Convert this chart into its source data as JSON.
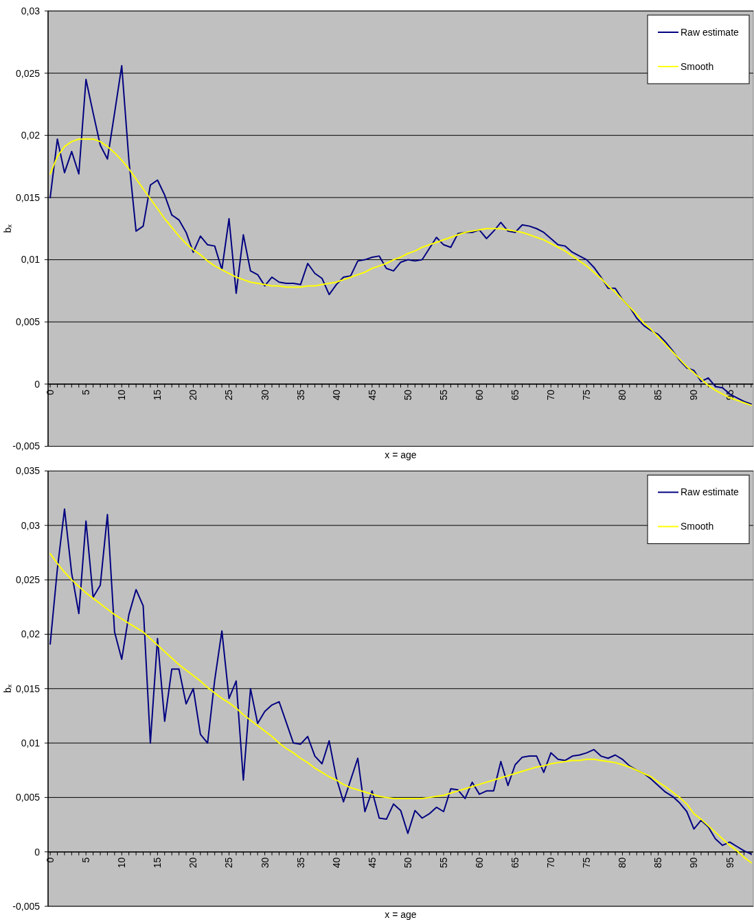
{
  "chart_data": [
    {
      "type": "line",
      "xlabel": "x = age",
      "ylabel": "bₓ",
      "categories": [
        "0",
        null,
        null,
        null,
        null,
        "5",
        null,
        null,
        null,
        null,
        "10",
        null,
        null,
        null,
        null,
        "15",
        null,
        null,
        null,
        null,
        "20",
        null,
        null,
        null,
        null,
        "25",
        null,
        null,
        null,
        null,
        "30",
        null,
        null,
        null,
        null,
        "35",
        null,
        null,
        null,
        null,
        "40",
        null,
        null,
        null,
        null,
        "45",
        null,
        null,
        null,
        null,
        "50",
        null,
        null,
        null,
        null,
        "55",
        null,
        null,
        null,
        null,
        "60",
        null,
        null,
        null,
        null,
        "65",
        null,
        null,
        null,
        null,
        "70",
        null,
        null,
        null,
        null,
        "75",
        null,
        null,
        null,
        null,
        "80",
        null,
        null,
        null,
        null,
        "85",
        null,
        null,
        null,
        null,
        "90",
        null,
        null,
        null,
        null,
        "95",
        null,
        null,
        null
      ],
      "ylim": [
        -0.005,
        0.03
      ],
      "yticks": [
        {
          "value": -0.005,
          "label": "-0,005"
        },
        0,
        {
          "value": 0.005,
          "label": "0,005"
        },
        {
          "value": 0.01,
          "label": "0,01"
        },
        {
          "value": 0.015,
          "label": "0,015"
        },
        {
          "value": 0.02,
          "label": "0,02"
        },
        {
          "value": 0.025,
          "label": "0,025"
        },
        {
          "value": 0.03,
          "label": "0,03"
        }
      ],
      "grid": "y",
      "legend": "top right",
      "series": [
        {
          "name": "Raw estimate",
          "color": "#000080",
          "values": [
            0.015,
            0.0197,
            0.017,
            0.0187,
            0.0169,
            0.0245,
            0.0218,
            0.0192,
            0.0181,
            0.0218,
            0.0256,
            0.018,
            0.0123,
            0.0127,
            0.016,
            0.0164,
            0.0152,
            0.0136,
            0.0132,
            0.0122,
            0.0106,
            0.0119,
            0.0112,
            0.0111,
            0.0092,
            0.0133,
            0.0073,
            0.012,
            0.0091,
            0.0088,
            0.0079,
            0.0086,
            0.0082,
            0.0081,
            0.0081,
            0.008,
            0.0097,
            0.0089,
            0.0085,
            0.0072,
            0.008,
            0.0086,
            0.0087,
            0.0099,
            0.01,
            0.0102,
            0.0103,
            0.0093,
            0.0091,
            0.0098,
            0.01,
            0.0099,
            0.01,
            0.0109,
            0.0118,
            0.0112,
            0.011,
            0.0121,
            0.0122,
            0.0122,
            0.0124,
            0.0117,
            0.0123,
            0.013,
            0.0123,
            0.0122,
            0.0128,
            0.0127,
            0.0125,
            0.0122,
            0.0117,
            0.0112,
            0.0111,
            0.0106,
            0.0103,
            0.01,
            0.0094,
            0.0086,
            0.0077,
            0.0077,
            0.0068,
            0.0062,
            0.0053,
            0.0047,
            0.0043,
            0.004,
            0.0034,
            0.0027,
            0.0019,
            0.0013,
            0.0011,
            0.0002,
            0.0005,
            -0.0002,
            -0.0003,
            -0.0008,
            -0.0011,
            -0.0014,
            -0.0016
          ]
        },
        {
          "name": "Smooth",
          "color": "#ffff00",
          "values": [
            0.0169,
            0.0183,
            0.0191,
            0.0195,
            0.0197,
            0.0197,
            0.0197,
            0.0195,
            0.0191,
            0.0186,
            0.018,
            0.0173,
            0.0165,
            0.0157,
            0.0149,
            0.0141,
            0.0133,
            0.0126,
            0.0119,
            0.0113,
            0.0108,
            0.0104,
            0.0099,
            0.0095,
            0.0092,
            0.0089,
            0.0086,
            0.0084,
            0.0082,
            0.0081,
            0.008,
            0.0079,
            0.0079,
            0.0078,
            0.0078,
            0.0078,
            0.0079,
            0.0079,
            0.008,
            0.0081,
            0.0082,
            0.0084,
            0.0086,
            0.0088,
            0.009,
            0.0093,
            0.0095,
            0.0097,
            0.01,
            0.0102,
            0.0105,
            0.0107,
            0.011,
            0.0112,
            0.0114,
            0.0116,
            0.0118,
            0.012,
            0.0122,
            0.0123,
            0.0124,
            0.0125,
            0.0125,
            0.0125,
            0.0124,
            0.0123,
            0.0122,
            0.012,
            0.0118,
            0.0116,
            0.0113,
            0.011,
            0.0107,
            0.0103,
            0.0099,
            0.0095,
            0.009,
            0.0085,
            0.0079,
            0.0074,
            0.0068,
            0.0062,
            0.0056,
            0.0049,
            0.0044,
            0.0038,
            0.0032,
            0.0026,
            0.002,
            0.0014,
            0.0009,
            0.0004,
            -0.0001,
            -0.0005,
            -0.0008,
            -0.0011,
            -0.0013,
            -0.0015,
            -0.0017
          ]
        }
      ]
    },
    {
      "type": "line",
      "xlabel": "x = age",
      "ylabel": "bₓ",
      "categories": [
        "0",
        null,
        null,
        null,
        null,
        "5",
        null,
        null,
        null,
        null,
        "10",
        null,
        null,
        null,
        null,
        "15",
        null,
        null,
        null,
        null,
        "20",
        null,
        null,
        null,
        null,
        "25",
        null,
        null,
        null,
        null,
        "30",
        null,
        null,
        null,
        null,
        "35",
        null,
        null,
        null,
        null,
        "40",
        null,
        null,
        null,
        null,
        "45",
        null,
        null,
        null,
        null,
        "50",
        null,
        null,
        null,
        null,
        "55",
        null,
        null,
        null,
        null,
        "60",
        null,
        null,
        null,
        null,
        "65",
        null,
        null,
        null,
        null,
        "70",
        null,
        null,
        null,
        null,
        "75",
        null,
        null,
        null,
        null,
        "80",
        null,
        null,
        null,
        null,
        "85",
        null,
        null,
        null,
        null,
        "90",
        null,
        null,
        null,
        null,
        "95",
        null,
        null,
        null
      ],
      "ylim": [
        -0.005,
        0.035
      ],
      "yticks": [
        {
          "value": -0.005,
          "label": "-0,005"
        },
        0,
        {
          "value": 0.005,
          "label": "0,005"
        },
        {
          "value": 0.01,
          "label": "0,01"
        },
        {
          "value": 0.015,
          "label": "0,015"
        },
        {
          "value": 0.02,
          "label": "0,02"
        },
        {
          "value": 0.025,
          "label": "0,025"
        },
        {
          "value": 0.03,
          "label": "0,03"
        },
        {
          "value": 0.035,
          "label": "0,035"
        }
      ],
      "grid": "y",
      "legend": "top right",
      "series": [
        {
          "name": "Raw estimate",
          "color": "#000080",
          "values": [
            0.0191,
            0.026,
            0.0315,
            0.0256,
            0.0219,
            0.0304,
            0.0234,
            0.0245,
            0.031,
            0.0202,
            0.0177,
            0.0218,
            0.0241,
            0.0226,
            0.01,
            0.0196,
            0.012,
            0.0168,
            0.0168,
            0.0136,
            0.015,
            0.0108,
            0.01,
            0.0158,
            0.0203,
            0.0141,
            0.0157,
            0.0066,
            0.015,
            0.0118,
            0.0129,
            0.0135,
            0.0138,
            0.0119,
            0.01,
            0.0099,
            0.0106,
            0.0088,
            0.0081,
            0.0102,
            0.0068,
            0.0046,
            0.0066,
            0.0086,
            0.0037,
            0.0056,
            0.0031,
            0.003,
            0.0044,
            0.0038,
            0.0017,
            0.0038,
            0.0031,
            0.0035,
            0.0041,
            0.0037,
            0.0058,
            0.0057,
            0.0049,
            0.0064,
            0.0053,
            0.0056,
            0.0056,
            0.0083,
            0.0061,
            0.008,
            0.0087,
            0.0088,
            0.0088,
            0.0073,
            0.0091,
            0.0085,
            0.0084,
            0.0088,
            0.0089,
            0.0091,
            0.0094,
            0.0088,
            0.0086,
            0.0089,
            0.0085,
            0.0079,
            0.0075,
            0.0072,
            0.0067,
            0.0061,
            0.0055,
            0.0051,
            0.0045,
            0.0037,
            0.0021,
            0.0029,
            0.0023,
            0.0012,
            0.0006,
            0.0009,
            0.0005,
            0.0001,
            -0.0002
          ]
        },
        {
          "name": "Smooth",
          "color": "#ffff00",
          "values": [
            0.0274,
            0.0265,
            0.0257,
            0.025,
            0.0244,
            0.0238,
            0.0233,
            0.0228,
            0.0223,
            0.0218,
            0.0214,
            0.021,
            0.0206,
            0.0202,
            0.0196,
            0.019,
            0.0184,
            0.0178,
            0.0172,
            0.0167,
            0.0162,
            0.0157,
            0.0151,
            0.0146,
            0.0141,
            0.0137,
            0.0132,
            0.0126,
            0.0121,
            0.0116,
            0.0111,
            0.0106,
            0.01,
            0.0095,
            0.0091,
            0.0086,
            0.0082,
            0.0077,
            0.0073,
            0.0069,
            0.0066,
            0.0062,
            0.0059,
            0.0057,
            0.0055,
            0.0053,
            0.0051,
            0.005,
            0.0049,
            0.0049,
            0.0049,
            0.0049,
            0.0049,
            0.005,
            0.0051,
            0.0052,
            0.0054,
            0.0056,
            0.0058,
            0.006,
            0.0062,
            0.0064,
            0.0066,
            0.0068,
            0.007,
            0.0072,
            0.0074,
            0.0076,
            0.0078,
            0.0079,
            0.0081,
            0.0082,
            0.0083,
            0.0084,
            0.0084,
            0.0085,
            0.0085,
            0.0084,
            0.0083,
            0.0082,
            0.008,
            0.0078,
            0.0075,
            0.0072,
            0.0069,
            0.0064,
            0.006,
            0.0055,
            0.005,
            0.0044,
            0.0035,
            0.003,
            0.0024,
            0.0018,
            0.0012,
            0.0006,
            0.0001,
            -0.0005,
            -0.001
          ]
        }
      ]
    }
  ]
}
